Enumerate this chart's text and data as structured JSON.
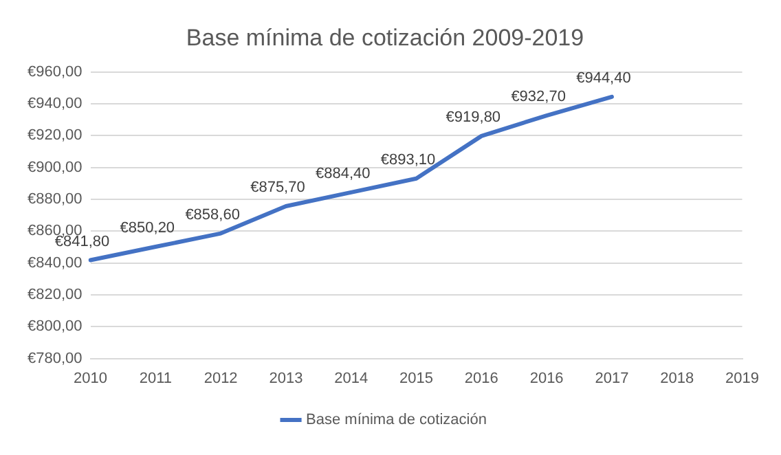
{
  "chart_data": {
    "type": "line",
    "title": "Base mínima de cotización 2009-2019",
    "categories": [
      "2010",
      "2011",
      "2012",
      "2013",
      "2014",
      "2015",
      "2016",
      "2016",
      "2017",
      "2018",
      "2019"
    ],
    "series": [
      {
        "name": "Base mínima de cotización",
        "color": "#4472c4",
        "values": [
          841.8,
          850.2,
          858.6,
          875.7,
          884.4,
          893.1,
          919.8,
          932.7,
          944.4,
          null,
          null
        ],
        "value_labels": [
          "€841,80",
          "€850,20",
          "€858,60",
          "€875,70",
          "€884,40",
          "€893,10",
          "€919,80",
          "€932,70",
          "€944,40",
          null,
          null
        ]
      }
    ],
    "ylim": [
      780,
      960
    ],
    "yticks": [
      {
        "value": 780,
        "label": "€780,00"
      },
      {
        "value": 800,
        "label": "€800,00"
      },
      {
        "value": 820,
        "label": "€820,00"
      },
      {
        "value": 840,
        "label": "€840,00"
      },
      {
        "value": 860,
        "label": "€860,00"
      },
      {
        "value": 880,
        "label": "€880,00"
      },
      {
        "value": 900,
        "label": "€900,00"
      },
      {
        "value": 920,
        "label": "€920,00"
      },
      {
        "value": 940,
        "label": "€940,00"
      },
      {
        "value": 960,
        "label": "€960,00"
      }
    ],
    "grid": "y",
    "legend": "bottom",
    "marker": "none",
    "line_style": "solid"
  }
}
